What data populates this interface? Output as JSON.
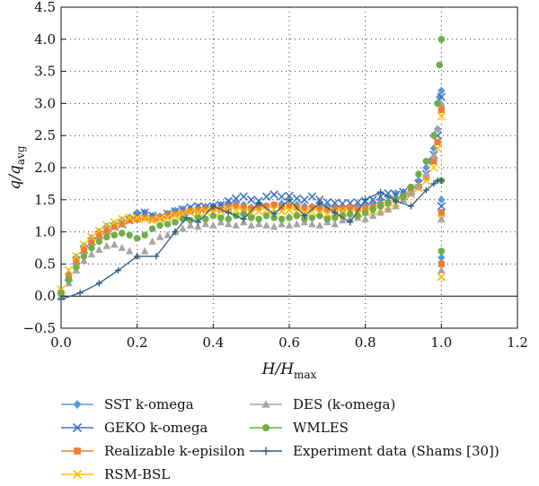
{
  "chart_data": {
    "type": "scatter",
    "xlabel": {
      "main": "H/H",
      "sub": "max"
    },
    "ylabel": {
      "main": "q/q",
      "sub": "avg"
    },
    "xlim": [
      0.0,
      1.2
    ],
    "ylim": [
      -0.5,
      4.5
    ],
    "xticks": [
      0.0,
      0.2,
      0.4,
      0.6,
      0.8,
      1.0,
      1.2
    ],
    "xtick_labels": [
      "0.0",
      "0.2",
      "0.4",
      "0.6",
      "0.8",
      "1.0",
      "1.2"
    ],
    "yticks": [
      -0.5,
      0.0,
      0.5,
      1.0,
      1.5,
      2.0,
      2.5,
      3.0,
      3.5,
      4.0,
      4.5
    ],
    "ytick_labels": [
      "−0.5",
      "0.0",
      "0.5",
      "1.0",
      "1.5",
      "2.0",
      "2.5",
      "3.0",
      "3.5",
      "4.0",
      "4.5"
    ],
    "grid": "dotted",
    "reference_line_y": 0,
    "legend_position": "bottom, two columns",
    "series": [
      {
        "name": "SST k-omega",
        "color": "#5b9bd5",
        "marker": "diamond",
        "line": false,
        "x": [
          0.0,
          0.02,
          0.04,
          0.06,
          0.08,
          0.1,
          0.12,
          0.14,
          0.16,
          0.18,
          0.2,
          0.22,
          0.24,
          0.26,
          0.28,
          0.3,
          0.32,
          0.34,
          0.36,
          0.38,
          0.4,
          0.42,
          0.44,
          0.46,
          0.48,
          0.5,
          0.52,
          0.54,
          0.56,
          0.58,
          0.6,
          0.62,
          0.64,
          0.66,
          0.68,
          0.7,
          0.72,
          0.74,
          0.76,
          0.78,
          0.8,
          0.82,
          0.84,
          0.86,
          0.88,
          0.9,
          0.92,
          0.94,
          0.96,
          0.97,
          0.98,
          0.99,
          0.995,
          1.0,
          1.0,
          1.0
        ],
        "y": [
          0.05,
          0.35,
          0.6,
          0.78,
          0.9,
          1.0,
          1.08,
          1.12,
          1.18,
          1.22,
          1.3,
          1.3,
          1.25,
          1.24,
          1.28,
          1.33,
          1.35,
          1.36,
          1.38,
          1.39,
          1.4,
          1.42,
          1.45,
          1.44,
          1.42,
          1.38,
          1.36,
          1.4,
          1.42,
          1.44,
          1.4,
          1.42,
          1.4,
          1.39,
          1.38,
          1.38,
          1.37,
          1.36,
          1.37,
          1.38,
          1.4,
          1.42,
          1.5,
          1.55,
          1.6,
          1.62,
          1.68,
          1.8,
          2.0,
          2.1,
          2.3,
          2.6,
          3.1,
          3.2,
          1.5,
          0.6
        ]
      },
      {
        "name": "GEKO k-omega",
        "color": "#4472c4",
        "marker": "x",
        "line": false,
        "x": [
          0.0,
          0.02,
          0.04,
          0.06,
          0.08,
          0.1,
          0.12,
          0.14,
          0.16,
          0.18,
          0.2,
          0.22,
          0.24,
          0.26,
          0.28,
          0.3,
          0.32,
          0.34,
          0.36,
          0.38,
          0.4,
          0.42,
          0.44,
          0.46,
          0.48,
          0.5,
          0.52,
          0.54,
          0.56,
          0.58,
          0.6,
          0.62,
          0.64,
          0.66,
          0.68,
          0.7,
          0.72,
          0.74,
          0.76,
          0.78,
          0.8,
          0.82,
          0.84,
          0.86,
          0.88,
          0.9,
          0.92,
          0.94,
          0.96,
          0.98,
          0.99,
          1.0,
          1.0,
          1.0
        ],
        "y": [
          0.0,
          0.3,
          0.55,
          0.72,
          0.85,
          0.95,
          1.02,
          1.08,
          1.12,
          1.18,
          1.25,
          1.3,
          1.25,
          1.22,
          1.28,
          1.32,
          1.35,
          1.38,
          1.4,
          1.38,
          1.4,
          1.42,
          1.48,
          1.52,
          1.55,
          1.5,
          1.48,
          1.55,
          1.58,
          1.55,
          1.56,
          1.52,
          1.5,
          1.55,
          1.5,
          1.46,
          1.45,
          1.44,
          1.45,
          1.46,
          1.48,
          1.5,
          1.55,
          1.6,
          1.58,
          1.62,
          1.65,
          1.75,
          1.9,
          2.2,
          2.5,
          3.1,
          1.4,
          0.3
        ]
      },
      {
        "name": "Realizable k-episilon",
        "color": "#ed7d31",
        "marker": "square",
        "line": false,
        "x": [
          0.0,
          0.02,
          0.04,
          0.06,
          0.08,
          0.1,
          0.12,
          0.14,
          0.16,
          0.18,
          0.2,
          0.22,
          0.24,
          0.26,
          0.28,
          0.3,
          0.32,
          0.34,
          0.36,
          0.38,
          0.4,
          0.42,
          0.44,
          0.46,
          0.48,
          0.5,
          0.52,
          0.54,
          0.56,
          0.58,
          0.6,
          0.62,
          0.64,
          0.66,
          0.68,
          0.7,
          0.72,
          0.74,
          0.76,
          0.78,
          0.8,
          0.82,
          0.84,
          0.86,
          0.88,
          0.9,
          0.92,
          0.94,
          0.96,
          0.98,
          0.99,
          1.0,
          1.0,
          1.0
        ],
        "y": [
          0.05,
          0.3,
          0.55,
          0.72,
          0.85,
          0.95,
          1.02,
          1.08,
          1.12,
          1.18,
          1.2,
          1.22,
          1.2,
          1.22,
          1.25,
          1.28,
          1.3,
          1.32,
          1.34,
          1.35,
          1.36,
          1.35,
          1.38,
          1.4,
          1.38,
          1.36,
          1.38,
          1.4,
          1.42,
          1.38,
          1.4,
          1.38,
          1.36,
          1.38,
          1.36,
          1.34,
          1.35,
          1.36,
          1.38,
          1.35,
          1.36,
          1.38,
          1.42,
          1.45,
          1.5,
          1.55,
          1.62,
          1.7,
          1.85,
          2.1,
          2.4,
          2.9,
          1.3,
          0.5
        ]
      },
      {
        "name": "RSM-BSL",
        "color": "#ffc000",
        "marker": "x",
        "line": false,
        "x": [
          0.0,
          0.02,
          0.04,
          0.06,
          0.08,
          0.1,
          0.12,
          0.14,
          0.16,
          0.18,
          0.2,
          0.22,
          0.24,
          0.26,
          0.28,
          0.3,
          0.32,
          0.34,
          0.36,
          0.38,
          0.4,
          0.42,
          0.44,
          0.46,
          0.48,
          0.5,
          0.52,
          0.54,
          0.56,
          0.58,
          0.6,
          0.62,
          0.64,
          0.66,
          0.68,
          0.7,
          0.72,
          0.74,
          0.76,
          0.78,
          0.8,
          0.82,
          0.84,
          0.86,
          0.88,
          0.9,
          0.92,
          0.94,
          0.96,
          0.98,
          0.99,
          1.0,
          1.0,
          1.0
        ],
        "y": [
          0.1,
          0.4,
          0.62,
          0.8,
          0.92,
          1.02,
          1.1,
          1.15,
          1.2,
          1.22,
          1.22,
          1.2,
          1.18,
          1.2,
          1.22,
          1.25,
          1.28,
          1.3,
          1.3,
          1.32,
          1.3,
          1.32,
          1.35,
          1.34,
          1.32,
          1.3,
          1.32,
          1.34,
          1.35,
          1.32,
          1.34,
          1.32,
          1.3,
          1.32,
          1.3,
          1.28,
          1.3,
          1.32,
          1.3,
          1.28,
          1.3,
          1.32,
          1.35,
          1.4,
          1.45,
          1.5,
          1.58,
          1.68,
          1.8,
          2.0,
          2.3,
          2.8,
          1.2,
          0.3
        ]
      },
      {
        "name": "DES (k-omega)",
        "color": "#a5a5a5",
        "marker": "triangle",
        "line": false,
        "x": [
          0.0,
          0.02,
          0.04,
          0.06,
          0.08,
          0.1,
          0.12,
          0.14,
          0.16,
          0.18,
          0.2,
          0.22,
          0.24,
          0.26,
          0.28,
          0.3,
          0.32,
          0.34,
          0.36,
          0.38,
          0.4,
          0.42,
          0.44,
          0.46,
          0.48,
          0.5,
          0.52,
          0.54,
          0.56,
          0.58,
          0.6,
          0.62,
          0.64,
          0.66,
          0.68,
          0.7,
          0.72,
          0.74,
          0.76,
          0.78,
          0.8,
          0.82,
          0.84,
          0.86,
          0.88,
          0.9,
          0.92,
          0.94,
          0.96,
          0.98,
          0.99,
          1.0,
          1.0,
          1.0
        ],
        "y": [
          0.0,
          0.2,
          0.4,
          0.55,
          0.65,
          0.72,
          0.78,
          0.8,
          0.75,
          0.7,
          0.62,
          0.7,
          0.85,
          0.92,
          0.95,
          1.0,
          1.05,
          1.1,
          1.08,
          1.12,
          1.1,
          1.15,
          1.12,
          1.1,
          1.15,
          1.1,
          1.12,
          1.1,
          1.08,
          1.12,
          1.1,
          1.12,
          1.15,
          1.12,
          1.1,
          1.15,
          1.12,
          1.18,
          1.2,
          1.22,
          1.2,
          1.25,
          1.3,
          1.35,
          1.4,
          1.5,
          1.6,
          1.72,
          1.9,
          2.2,
          2.6,
          3.0,
          1.2,
          0.4
        ]
      },
      {
        "name": "WMLES",
        "color": "#70ad47",
        "marker": "circle",
        "line": false,
        "x": [
          0.0,
          0.02,
          0.04,
          0.06,
          0.08,
          0.1,
          0.12,
          0.14,
          0.16,
          0.18,
          0.2,
          0.22,
          0.24,
          0.26,
          0.28,
          0.3,
          0.32,
          0.34,
          0.36,
          0.38,
          0.4,
          0.42,
          0.44,
          0.46,
          0.48,
          0.5,
          0.52,
          0.54,
          0.56,
          0.58,
          0.6,
          0.62,
          0.64,
          0.66,
          0.68,
          0.7,
          0.72,
          0.74,
          0.76,
          0.78,
          0.8,
          0.82,
          0.84,
          0.86,
          0.88,
          0.9,
          0.92,
          0.94,
          0.96,
          0.98,
          0.99,
          0.995,
          1.0,
          1.0,
          1.0
        ],
        "y": [
          0.05,
          0.25,
          0.45,
          0.62,
          0.75,
          0.85,
          0.92,
          0.95,
          0.98,
          0.95,
          0.9,
          0.95,
          1.05,
          1.1,
          1.12,
          1.15,
          1.2,
          1.18,
          1.22,
          1.2,
          1.25,
          1.22,
          1.2,
          1.25,
          1.28,
          1.22,
          1.2,
          1.25,
          1.22,
          1.2,
          1.22,
          1.25,
          1.2,
          1.22,
          1.25,
          1.2,
          1.22,
          1.25,
          1.28,
          1.25,
          1.3,
          1.35,
          1.4,
          1.45,
          1.5,
          1.55,
          1.7,
          1.9,
          2.1,
          2.5,
          3.0,
          3.6,
          4.0,
          1.8,
          0.7
        ]
      },
      {
        "name": "Experiment data (Shams [30])",
        "color": "#2e5d8a",
        "marker": "plus",
        "line": true,
        "x": [
          0.0,
          0.05,
          0.1,
          0.15,
          0.2,
          0.25,
          0.3,
          0.33,
          0.36,
          0.4,
          0.44,
          0.48,
          0.52,
          0.56,
          0.6,
          0.64,
          0.68,
          0.72,
          0.76,
          0.8,
          0.84,
          0.88,
          0.92,
          0.96,
          0.98,
          0.99,
          1.0
        ],
        "y": [
          -0.05,
          0.05,
          0.2,
          0.4,
          0.62,
          0.62,
          1.0,
          1.22,
          1.15,
          1.4,
          1.3,
          1.2,
          1.45,
          1.28,
          1.5,
          1.25,
          1.45,
          1.3,
          1.15,
          1.5,
          1.62,
          1.48,
          1.4,
          1.65,
          1.75,
          1.8,
          1.8
        ]
      }
    ]
  }
}
